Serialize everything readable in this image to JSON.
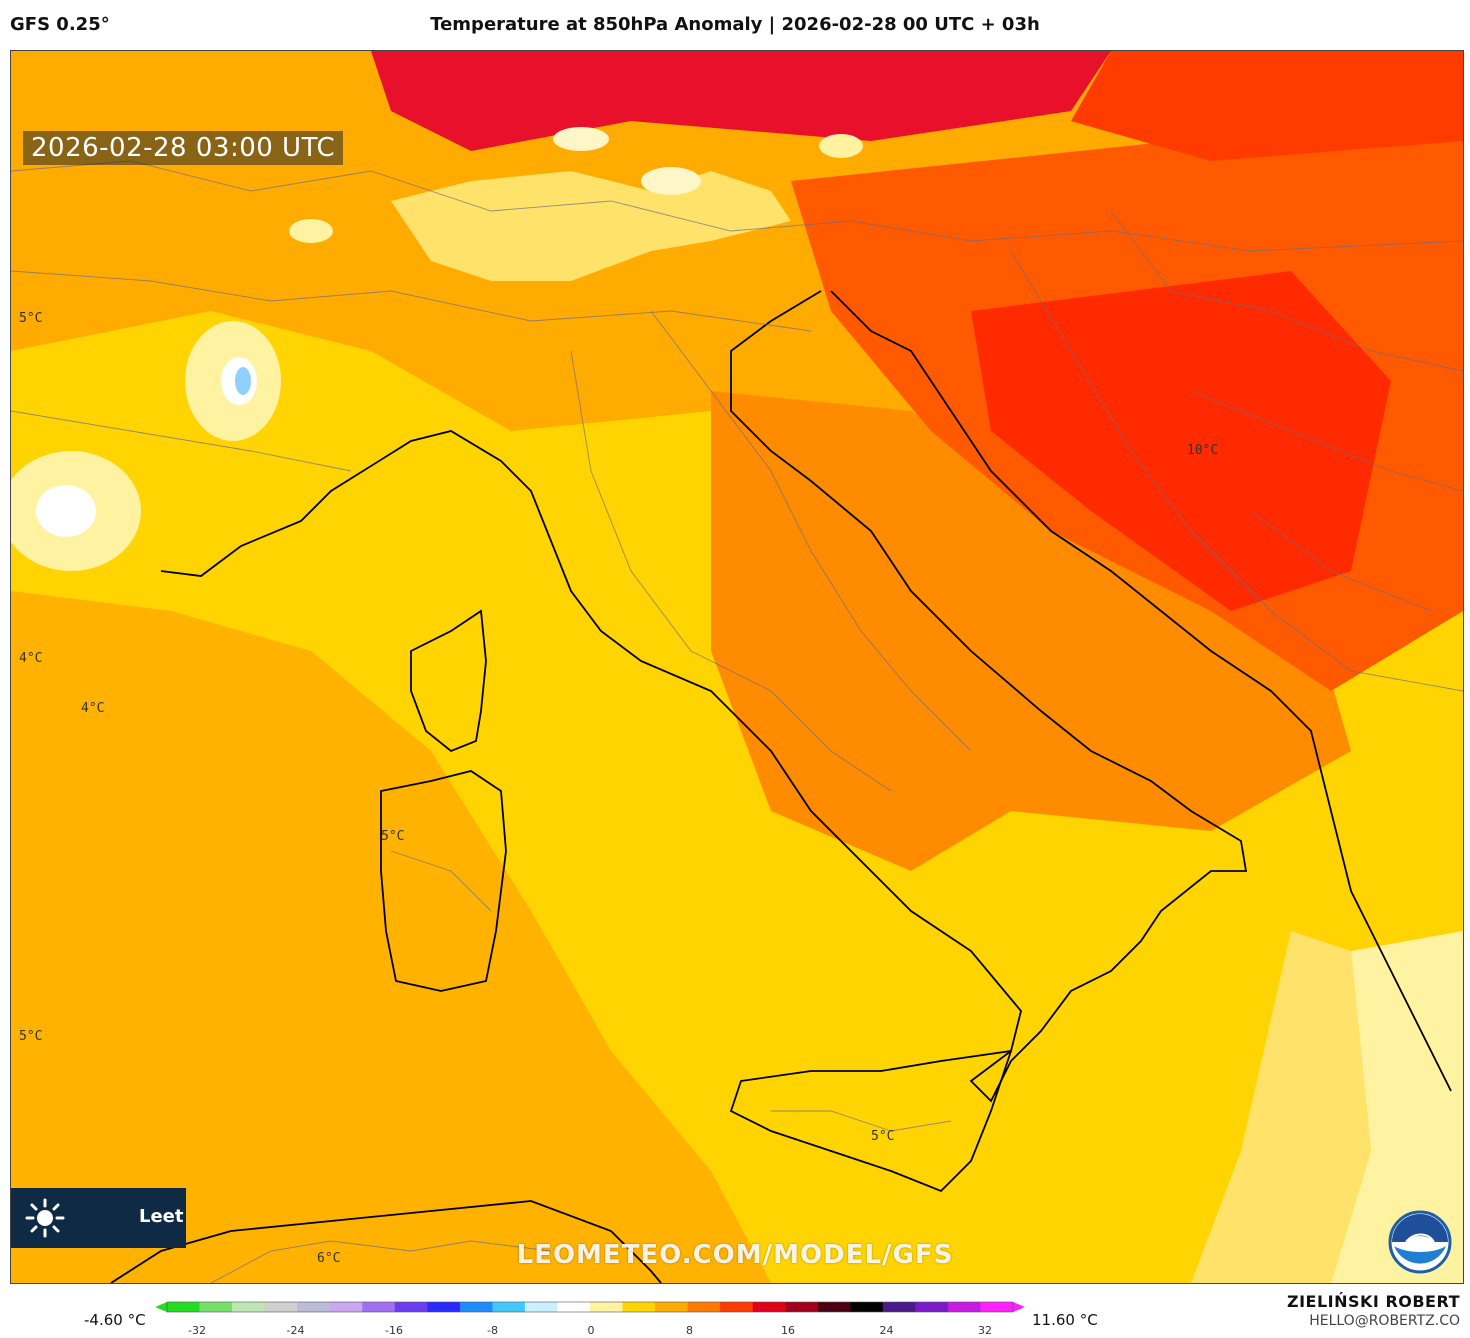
{
  "header": {
    "model": "GFS 0.25°",
    "title": "Temperature at 850hPa Anomaly | 2026-02-28 00 UTC + 03h"
  },
  "map": {
    "valid_time": "2026-02-28 03:00 UTC",
    "isolabels": [
      "5°C",
      "4°C",
      "4°C",
      "5°C",
      "10°C",
      "5°C",
      "5°C",
      "6°C"
    ],
    "watermark": "LEOMETEO.COM/MODEL/GFS",
    "brand_text": "Leet",
    "logos": [
      "sun-icon",
      "noaa-logo"
    ]
  },
  "colorbar": {
    "min_label": "-4.60 °C",
    "max_label": "11.60 °C",
    "ticks": [
      "-32",
      "-24",
      "-16",
      "-8",
      "0",
      "8",
      "16",
      "24",
      "32"
    ],
    "colors": [
      "#22dd22",
      "#77e06a",
      "#bde6b4",
      "#d0d0d0",
      "#bcbcd8",
      "#c8a8ee",
      "#a070f0",
      "#6a3ef0",
      "#2a2aff",
      "#1e8cff",
      "#40c8ff",
      "#c8f0ff",
      "#ffffff",
      "#fff2a0",
      "#ffd400",
      "#ffab00",
      "#ff7a00",
      "#ff3b00",
      "#e0001a",
      "#a0001a",
      "#4a0010",
      "#000000",
      "#4a1a8a",
      "#7a1ac8",
      "#c81ae0",
      "#ff20ff"
    ]
  },
  "footer": {
    "author": "ZIELIŃSKI ROBERT",
    "email": "HELLO@ROBERTZ.CO"
  }
}
